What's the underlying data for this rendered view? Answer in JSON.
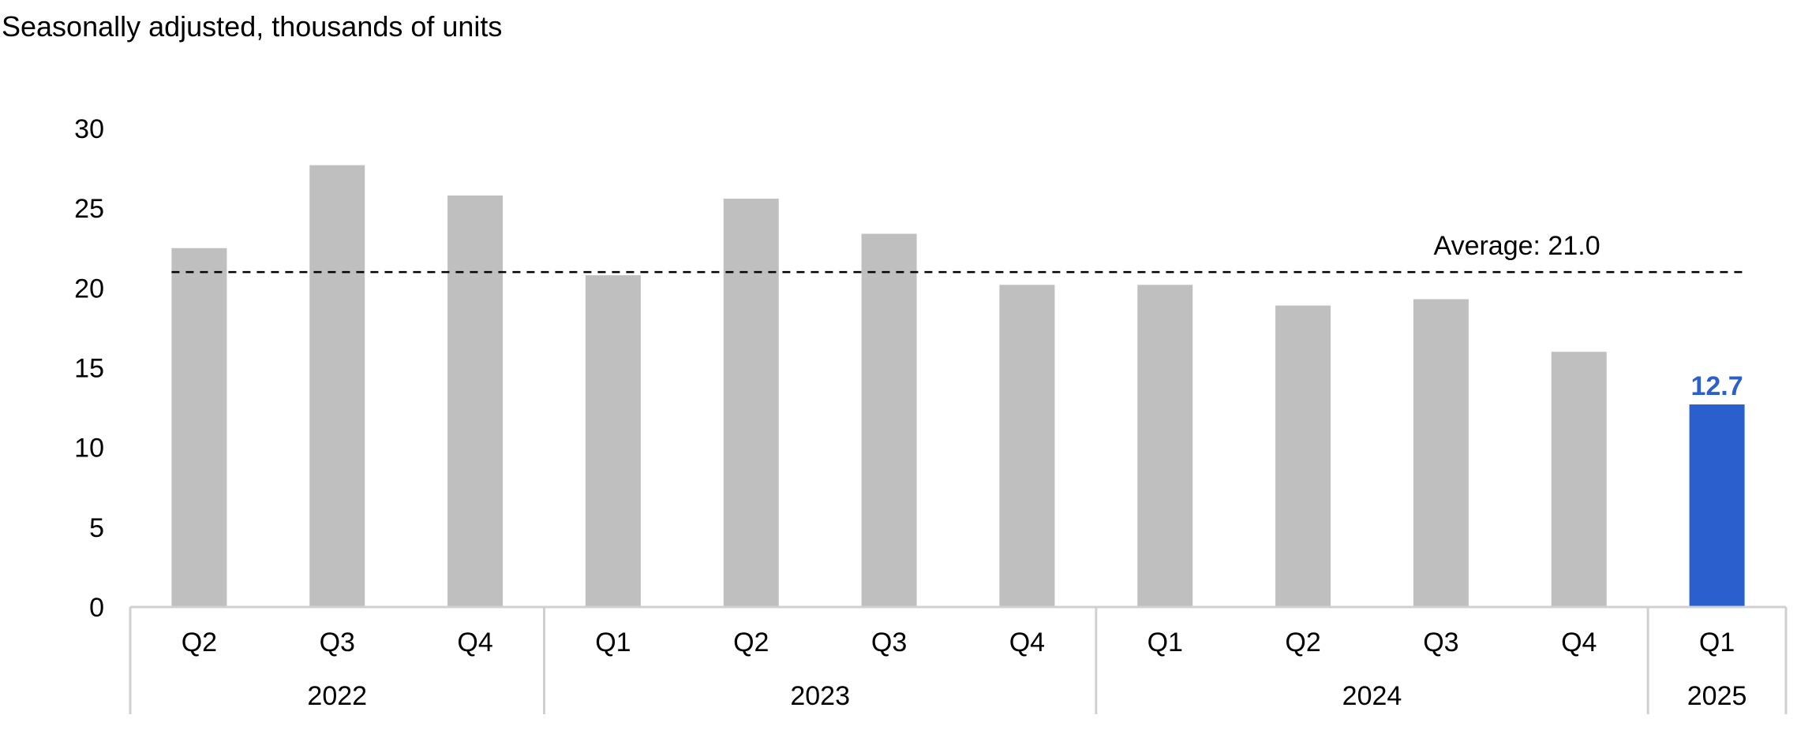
{
  "chart_data": {
    "type": "bar",
    "subtitle": "Seasonally adjusted, thousands of units",
    "categories": [
      "Q2",
      "Q3",
      "Q4",
      "Q1",
      "Q2",
      "Q3",
      "Q4",
      "Q1",
      "Q2",
      "Q3",
      "Q4",
      "Q1"
    ],
    "years": [
      {
        "label": "2022",
        "count": 3
      },
      {
        "label": "2023",
        "count": 4
      },
      {
        "label": "2024",
        "count": 4
      },
      {
        "label": "2025",
        "count": 1
      }
    ],
    "values": [
      22.5,
      27.7,
      25.8,
      20.8,
      25.6,
      23.4,
      20.2,
      20.2,
      18.9,
      19.3,
      16.0,
      12.7
    ],
    "highlight_index": 11,
    "highlight_label": "12.7",
    "average": {
      "label": "Average:  21.0",
      "value": 21.0
    },
    "ylim": [
      0,
      30
    ],
    "yticks": [
      0,
      5,
      10,
      15,
      20,
      25,
      30
    ],
    "grid": false,
    "colors": {
      "bar": "#bfbfbf",
      "highlight": "#2b5fce",
      "axis": "#d0d0d0",
      "average": "#000000"
    }
  }
}
